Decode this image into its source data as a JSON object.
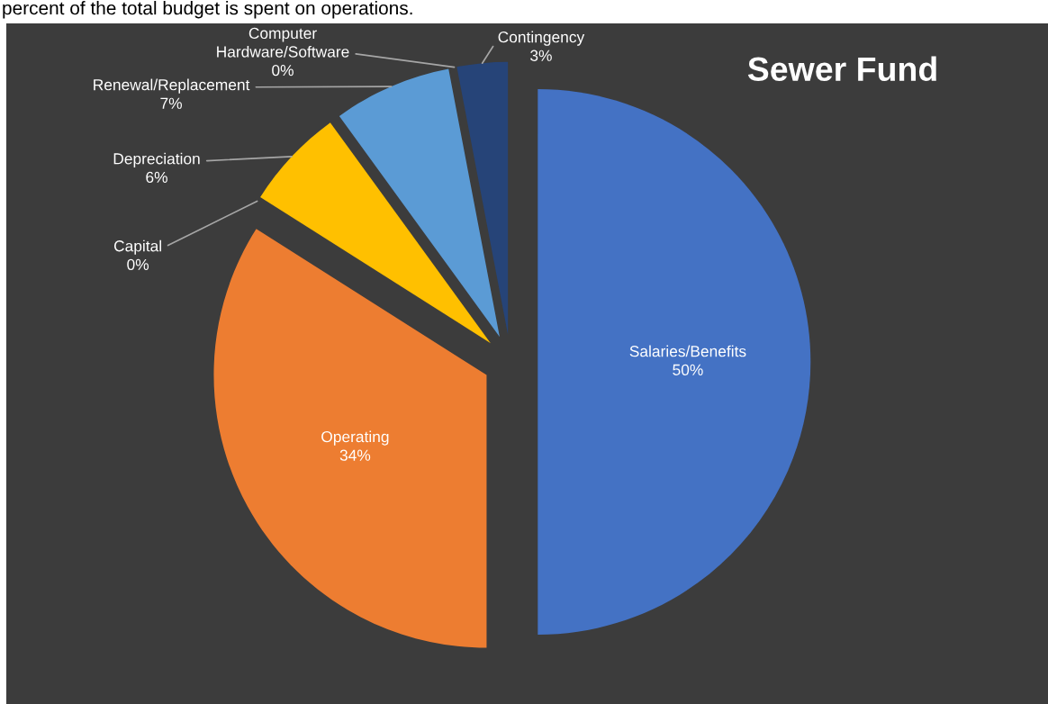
{
  "chart_data": {
    "type": "pie",
    "title": "Sewer Fund",
    "categories": [
      "Salaries/Benefits",
      "Operating",
      "Capital",
      "Depreciation",
      "Renewal/Replacement",
      "Computer Hardware/Software",
      "Contingency"
    ],
    "values": [
      50,
      34,
      0,
      6,
      7,
      0,
      3
    ],
    "colors": [
      "#4472c4",
      "#ed7d31",
      null,
      "#ffc000",
      "#5b9bd5",
      null,
      "#264478"
    ],
    "value_labels": [
      "50%",
      "34%",
      "0%",
      "6%",
      "7%",
      "0%",
      "3%"
    ],
    "annotations": [
      "percent of the total budget is spent on operations."
    ]
  }
}
